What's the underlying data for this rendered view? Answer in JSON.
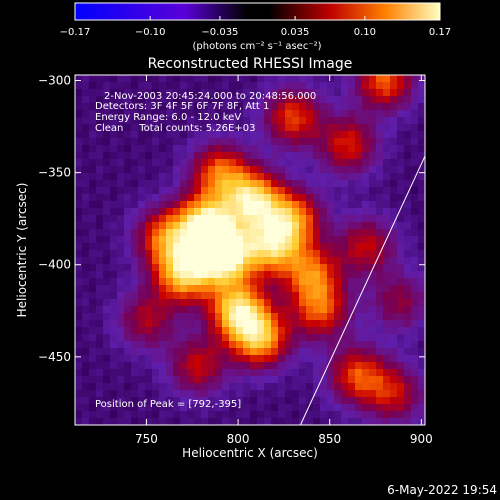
{
  "colorbar": {
    "ticks": [
      "-0.17",
      "-0.10",
      "-0.035",
      "0.035",
      "0.10",
      "0.17"
    ],
    "units": "(photons cm⁻² s⁻¹ asec⁻²)",
    "range": [
      -0.17,
      0.17
    ]
  },
  "chart_data": {
    "type": "heatmap",
    "title": "Reconstructed RHESSI Image",
    "xlabel": "Heliocentric X (arcsec)",
    "ylabel": "Heliocentric Y (arcsec)",
    "xlim": [
      711,
      902
    ],
    "ylim": [
      -487,
      -297
    ],
    "x_ticks": [
      750,
      800,
      850,
      900
    ],
    "y_ticks": [
      -300,
      -350,
      -400,
      -450
    ],
    "annotations": [
      "2-Nov-2003 20:45:24.000 to 20:48:56.000",
      "Detectors: 3F 4F 5F 6F 7F 8F, Att 1",
      "Energy Range: 6.0 - 12.0 keV",
      "Clean     Total counts: 5.26E+03"
    ],
    "peak_label": "Position of Peak = [792,-395]",
    "peak": [
      792,
      -395
    ],
    "limb_line": [
      [
        834,
        -487
      ],
      [
        902,
        -341
      ]
    ],
    "blobs": [
      {
        "x": 792,
        "y": -395,
        "v": 1.0
      },
      {
        "x": 782,
        "y": -378,
        "v": 0.85
      },
      {
        "x": 770,
        "y": -405,
        "v": 0.75
      },
      {
        "x": 808,
        "y": -365,
        "v": 0.8
      },
      {
        "x": 818,
        "y": -390,
        "v": 0.7
      },
      {
        "x": 800,
        "y": -425,
        "v": 0.8
      },
      {
        "x": 812,
        "y": -440,
        "v": 0.7
      },
      {
        "x": 760,
        "y": -385,
        "v": 0.55
      },
      {
        "x": 830,
        "y": -375,
        "v": 0.6
      },
      {
        "x": 840,
        "y": -405,
        "v": 0.55
      },
      {
        "x": 845,
        "y": -425,
        "v": 0.5
      },
      {
        "x": 790,
        "y": -350,
        "v": 0.55
      },
      {
        "x": 830,
        "y": -320,
        "v": 0.5
      },
      {
        "x": 860,
        "y": -335,
        "v": 0.45
      },
      {
        "x": 880,
        "y": -300,
        "v": 0.55
      },
      {
        "x": 870,
        "y": -390,
        "v": 0.4
      },
      {
        "x": 865,
        "y": -460,
        "v": 0.5
      },
      {
        "x": 885,
        "y": -470,
        "v": 0.4
      },
      {
        "x": 750,
        "y": -430,
        "v": 0.35
      },
      {
        "x": 778,
        "y": -455,
        "v": 0.4
      },
      {
        "x": 888,
        "y": -420,
        "v": 0.3
      }
    ]
  },
  "footer": {
    "date": "6-May-2022 19:54"
  }
}
